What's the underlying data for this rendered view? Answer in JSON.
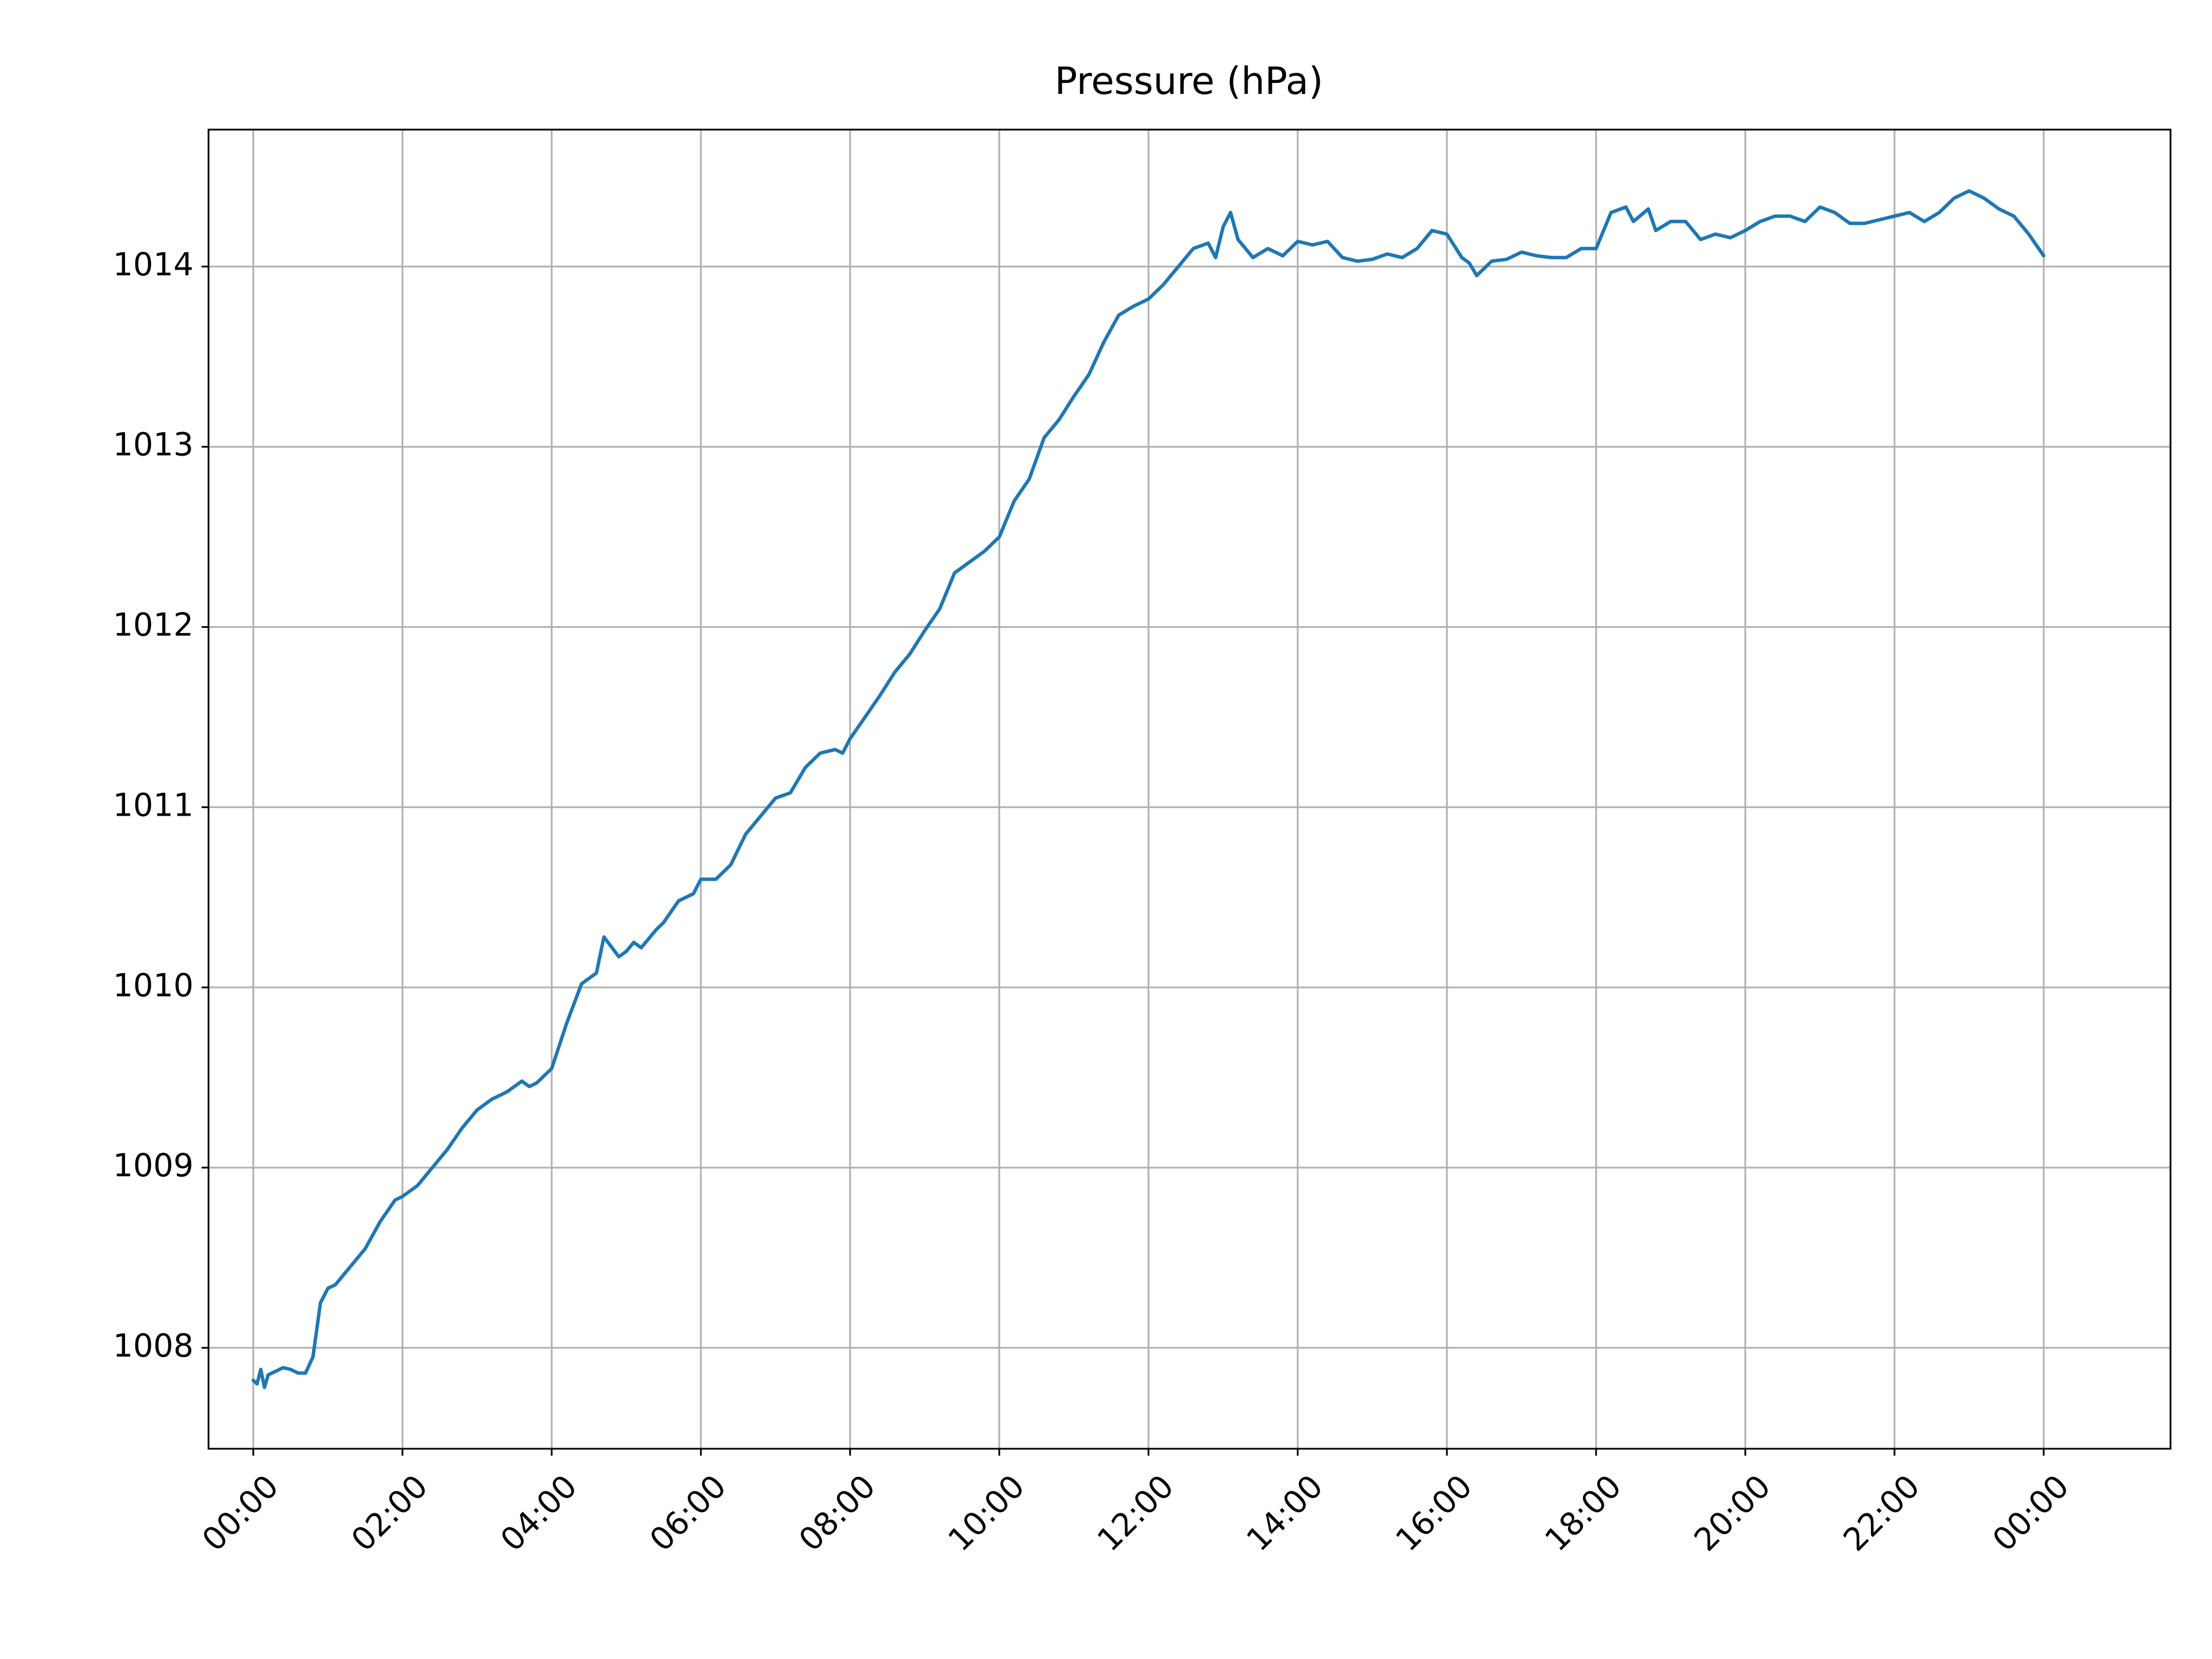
{
  "chart_data": {
    "type": "line",
    "title": "Pressure (hPa)",
    "xlabel": "",
    "ylabel": "",
    "x_unit": "hours",
    "xlim": [
      -0.6,
      25.7
    ],
    "ylim": [
      1007.44,
      1014.76
    ],
    "x_ticks": [
      0,
      2,
      4,
      6,
      8,
      10,
      12,
      14,
      16,
      18,
      20,
      22,
      24
    ],
    "x_tick_labels": [
      "00:00",
      "02:00",
      "04:00",
      "06:00",
      "08:00",
      "10:00",
      "12:00",
      "14:00",
      "16:00",
      "18:00",
      "20:00",
      "22:00",
      "00:00"
    ],
    "y_ticks": [
      1008,
      1009,
      1010,
      1011,
      1012,
      1013,
      1014
    ],
    "y_tick_labels": [
      "1008",
      "1009",
      "1010",
      "1011",
      "1012",
      "1013",
      "1014"
    ],
    "grid": true,
    "line_color": "#1f77b4",
    "series": [
      {
        "x": [
          0,
          0.05,
          0.1,
          0.15,
          0.2,
          0.3,
          0.4,
          0.5,
          0.6,
          0.7,
          0.8,
          0.9,
          1.0,
          1.1,
          1.2,
          1.3,
          1.5,
          1.7,
          1.9,
          2.0,
          2.2,
          2.4,
          2.6,
          2.8,
          3.0,
          3.2,
          3.4,
          3.6,
          3.7,
          3.8,
          4.0,
          4.2,
          4.4,
          4.6,
          4.7,
          4.9,
          5.0,
          5.1,
          5.2,
          5.4,
          5.5,
          5.7,
          5.9,
          6.0,
          6.2,
          6.4,
          6.6,
          6.8,
          7.0,
          7.2,
          7.4,
          7.6,
          7.8,
          7.9,
          8.0,
          8.2,
          8.4,
          8.6,
          8.8,
          9.0,
          9.2,
          9.4,
          9.6,
          9.8,
          10.0,
          10.2,
          10.4,
          10.6,
          10.8,
          11.0,
          11.2,
          11.4,
          11.6,
          11.8,
          12.0,
          12.2,
          12.4,
          12.6,
          12.8,
          12.9,
          13.0,
          13.1,
          13.2,
          13.4,
          13.6,
          13.8,
          14.0,
          14.2,
          14.4,
          14.6,
          14.8,
          15.0,
          15.2,
          15.4,
          15.6,
          15.8,
          16.0,
          16.2,
          16.3,
          16.4,
          16.6,
          16.8,
          17.0,
          17.2,
          17.4,
          17.6,
          17.8,
          18.0,
          18.1,
          18.2,
          18.4,
          18.5,
          18.7,
          18.8,
          19.0,
          19.2,
          19.4,
          19.6,
          19.8,
          20.0,
          20.2,
          20.4,
          20.6,
          20.8,
          21.0,
          21.2,
          21.4,
          21.6,
          21.8,
          22.0,
          22.2,
          22.4,
          22.6,
          22.8,
          23.0,
          23.2,
          23.4,
          23.6,
          23.8,
          24.0
        ],
        "y": [
          1007.82,
          1007.8,
          1007.88,
          1007.78,
          1007.85,
          1007.87,
          1007.89,
          1007.88,
          1007.86,
          1007.86,
          1007.95,
          1008.25,
          1008.33,
          1008.35,
          1008.4,
          1008.45,
          1008.55,
          1008.7,
          1008.82,
          1008.84,
          1008.9,
          1009.0,
          1009.1,
          1009.22,
          1009.32,
          1009.38,
          1009.42,
          1009.48,
          1009.45,
          1009.47,
          1009.55,
          1009.8,
          1010.02,
          1010.08,
          1010.28,
          1010.17,
          1010.2,
          1010.25,
          1010.22,
          1010.32,
          1010.36,
          1010.48,
          1010.52,
          1010.6,
          1010.6,
          1010.68,
          1010.85,
          1010.95,
          1011.05,
          1011.08,
          1011.22,
          1011.3,
          1011.32,
          1011.3,
          1011.38,
          1011.5,
          1011.62,
          1011.75,
          1011.85,
          1011.98,
          1012.1,
          1012.3,
          1012.36,
          1012.42,
          1012.5,
          1012.7,
          1012.82,
          1013.05,
          1013.15,
          1013.28,
          1013.4,
          1013.58,
          1013.73,
          1013.78,
          1013.82,
          1013.9,
          1014.0,
          1014.1,
          1014.13,
          1014.05,
          1014.22,
          1014.3,
          1014.15,
          1014.05,
          1014.1,
          1014.06,
          1014.14,
          1014.12,
          1014.14,
          1014.05,
          1014.03,
          1014.04,
          1014.07,
          1014.05,
          1014.1,
          1014.2,
          1014.18,
          1014.05,
          1014.02,
          1013.95,
          1014.03,
          1014.04,
          1014.08,
          1014.06,
          1014.05,
          1014.05,
          1014.1,
          1014.1,
          1014.2,
          1014.3,
          1014.33,
          1014.25,
          1014.32,
          1014.2,
          1014.25,
          1014.25,
          1014.15,
          1014.18,
          1014.16,
          1014.2,
          1014.25,
          1014.28,
          1014.28,
          1014.25,
          1014.33,
          1014.3,
          1014.24,
          1014.24,
          1014.26,
          1014.28,
          1014.3,
          1014.25,
          1014.3,
          1014.38,
          1014.42,
          1014.38,
          1014.32,
          1014.28,
          1014.18,
          1014.06
        ]
      }
    ]
  }
}
